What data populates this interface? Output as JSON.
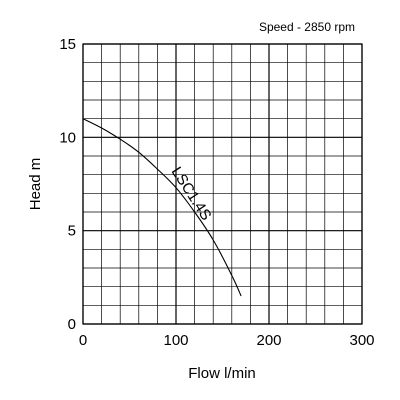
{
  "header": {
    "speed_label": "Speed - 2850 rpm"
  },
  "chart_data": {
    "type": "line",
    "title": "",
    "xlabel": "Flow l/min",
    "ylabel": "Head m",
    "xlim": [
      0,
      300
    ],
    "ylim": [
      0,
      15
    ],
    "x_ticks": [
      0,
      100,
      200,
      300
    ],
    "y_ticks": [
      0,
      5,
      10,
      15
    ],
    "x_tick_labels": [
      "0",
      "100",
      "200",
      "300"
    ],
    "y_tick_labels": [
      "0",
      "5",
      "10",
      "15"
    ],
    "grid": true,
    "minor_x_step": 20,
    "minor_y_step": 1,
    "series": [
      {
        "name": "LSC1.4S",
        "x": [
          0,
          20,
          40,
          60,
          80,
          100,
          120,
          140,
          160,
          170
        ],
        "y": [
          11.0,
          10.5,
          9.9,
          9.2,
          8.3,
          7.3,
          6.0,
          4.5,
          2.6,
          1.5
        ]
      }
    ]
  }
}
